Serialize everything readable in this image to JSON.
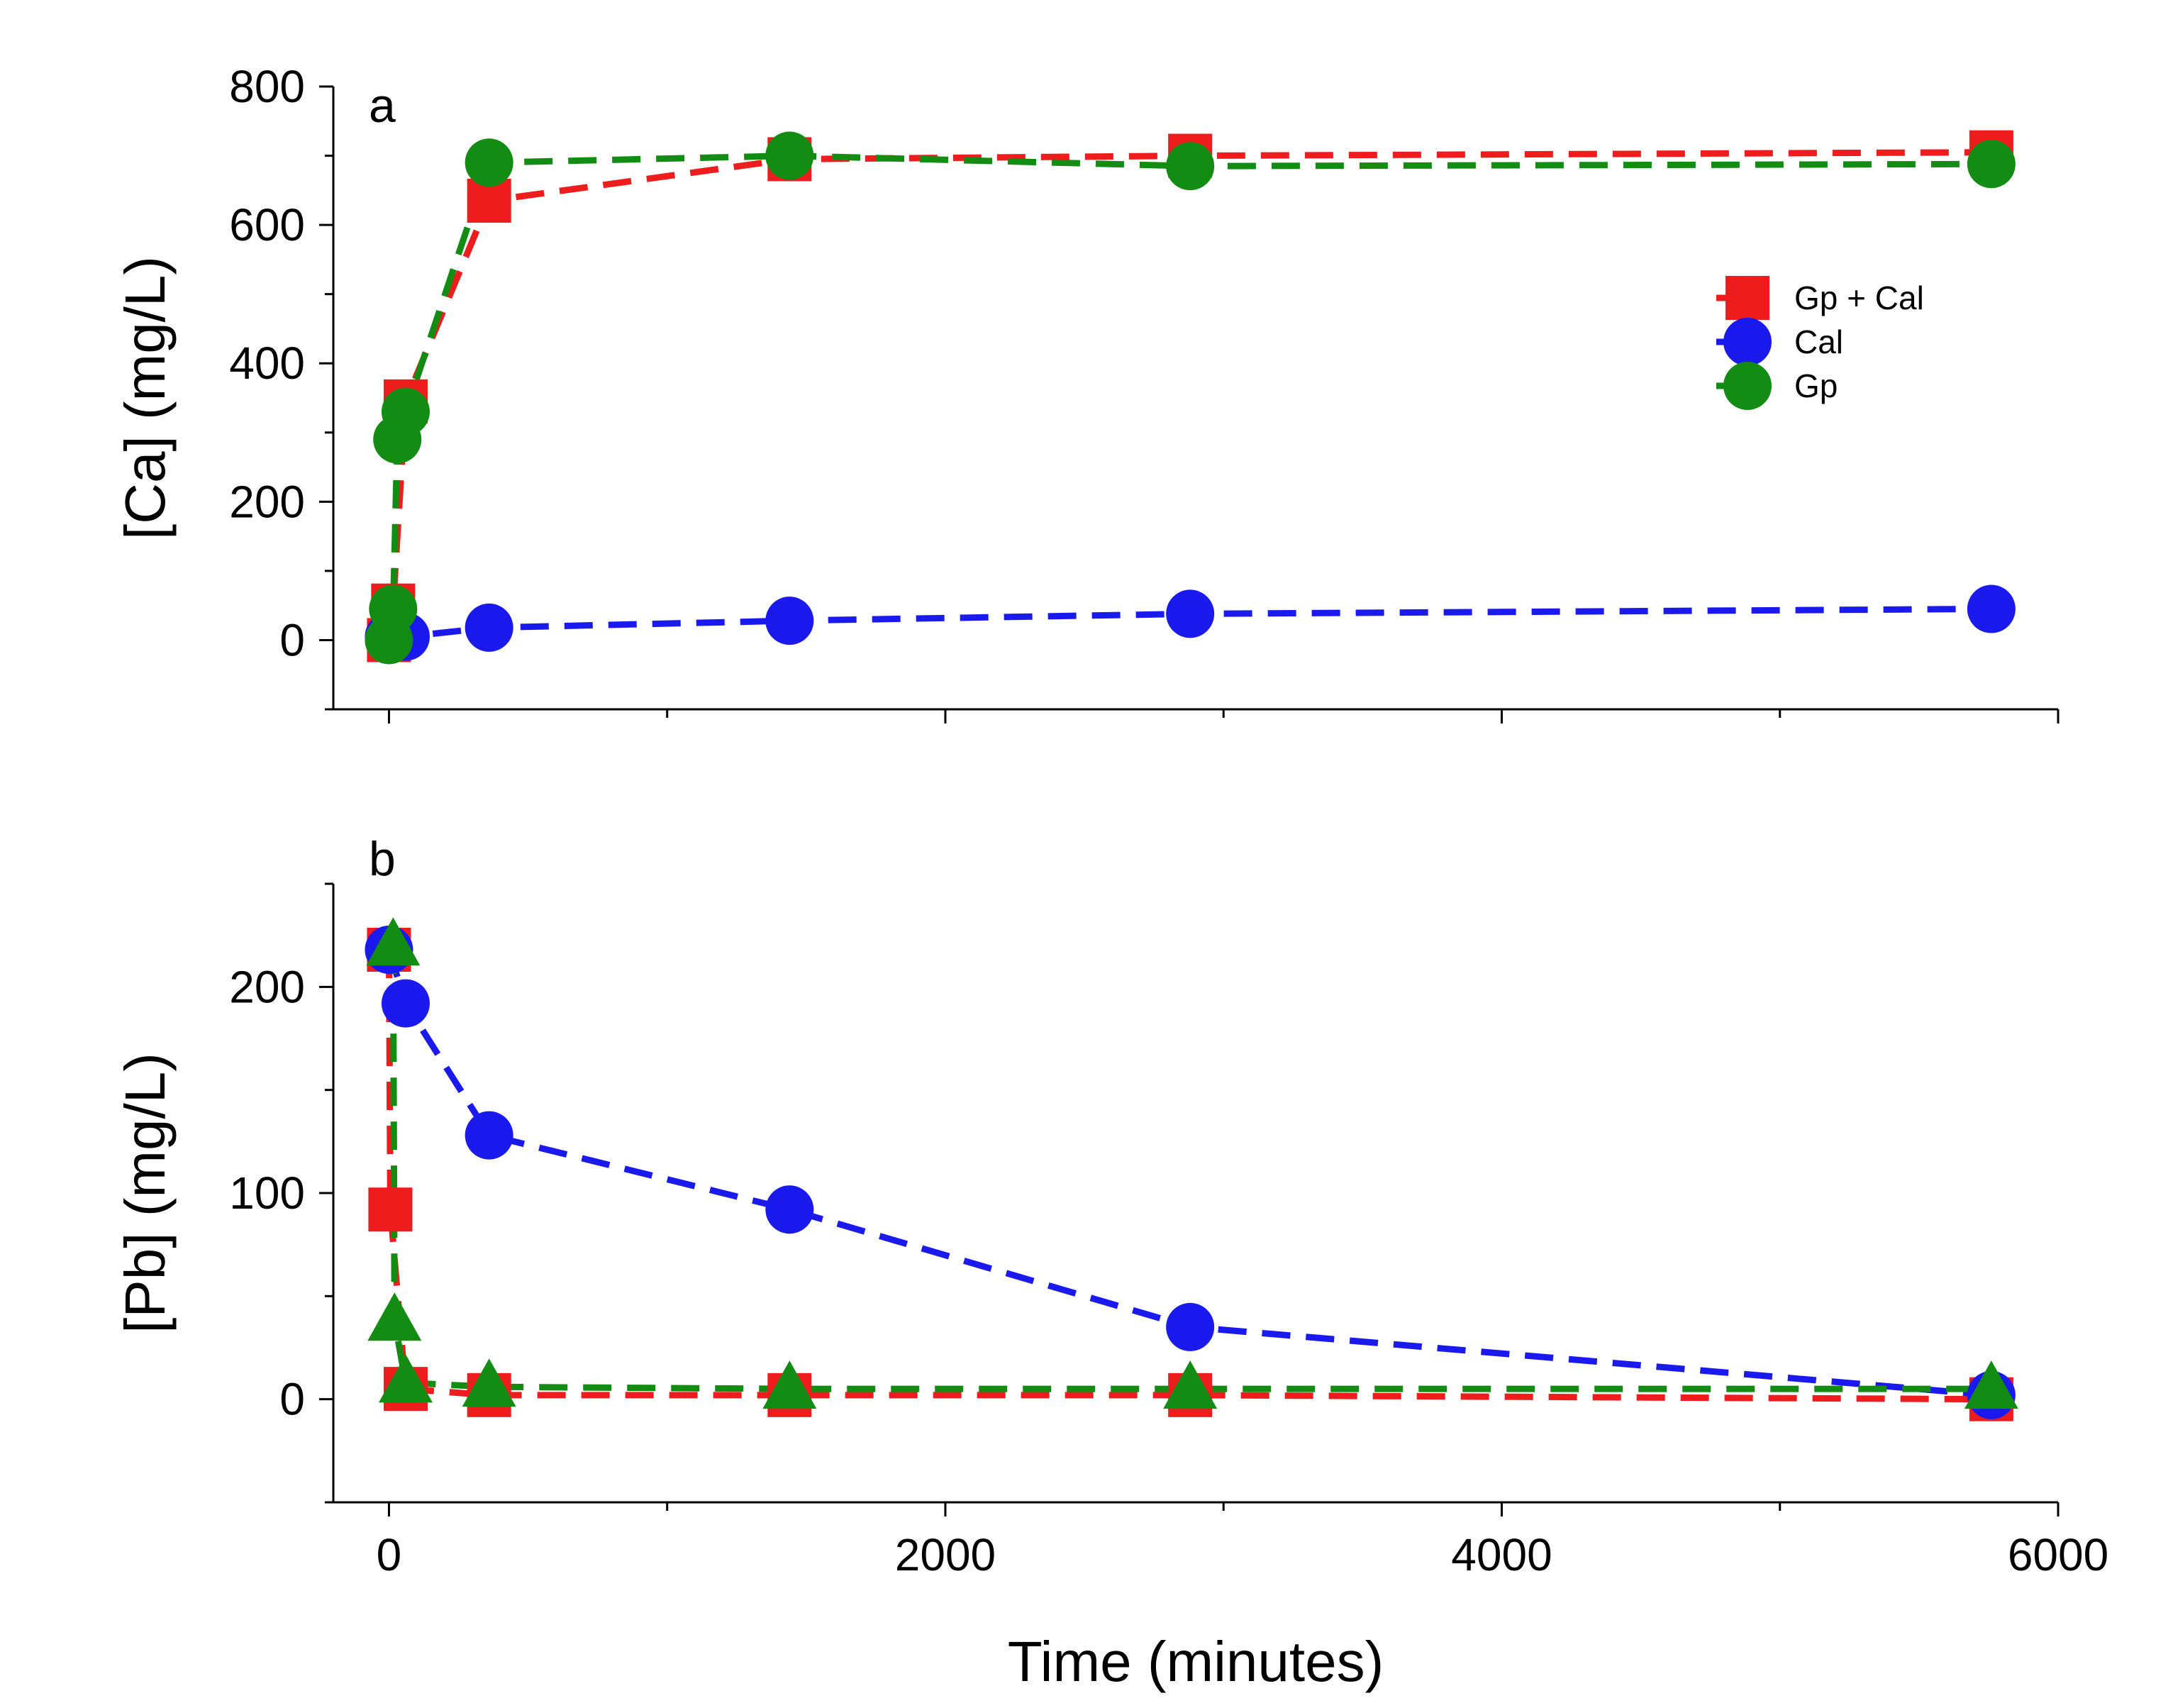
{
  "chart_data": [
    {
      "id": "a",
      "type": "line",
      "panel_label": "a",
      "ylabel": "[Ca] (mg/L)",
      "xlabel": "",
      "xlim": [
        -200,
        6000
      ],
      "ylim": [
        -100,
        800
      ],
      "xticks": [
        0,
        2000,
        4000,
        6000
      ],
      "xtick_labels_visible": false,
      "yticks": [
        0,
        200,
        400,
        600,
        800
      ],
      "ytick_labels": [
        "0",
        "200",
        "400",
        "600",
        "800"
      ],
      "legend": {
        "position": "top-right",
        "entries": [
          "Gp + Cal",
          "Cal",
          "Gp"
        ]
      },
      "series": [
        {
          "name": "Gp + Cal",
          "color": "#ee1c1c",
          "marker": "square",
          "x": [
            0,
            15,
            60,
            360,
            1440,
            2880,
            5760
          ],
          "y": [
            0,
            50,
            345,
            635,
            695,
            700,
            705
          ]
        },
        {
          "name": "Cal",
          "color": "#1a1aee",
          "marker": "circle",
          "x": [
            0,
            60,
            360,
            1440,
            2880,
            5760
          ],
          "y": [
            5,
            5,
            18,
            28,
            38,
            45
          ]
        },
        {
          "name": "Gp",
          "color": "#128c12",
          "marker": "circle",
          "x": [
            0,
            15,
            30,
            60,
            360,
            1440,
            2880,
            5760
          ],
          "y": [
            0,
            45,
            290,
            330,
            690,
            700,
            685,
            688
          ]
        }
      ]
    },
    {
      "id": "b",
      "type": "line",
      "panel_label": "b",
      "ylabel": "[Pb] (mg/L)",
      "xlabel": "Time (minutes)",
      "xlim": [
        -200,
        6000
      ],
      "ylim": [
        -50,
        250
      ],
      "xticks": [
        0,
        2000,
        4000,
        6000
      ],
      "xtick_labels": [
        "0",
        "2000",
        "4000",
        "6000"
      ],
      "yticks": [
        0,
        100,
        200
      ],
      "ytick_labels": [
        "0",
        "100",
        "200"
      ],
      "series": [
        {
          "name": "Gp + Cal",
          "color": "#ee1c1c",
          "marker": "square",
          "x": [
            0,
            5,
            60,
            360,
            1440,
            2880,
            5760
          ],
          "y": [
            218,
            92,
            5,
            2,
            2,
            2,
            0
          ]
        },
        {
          "name": "Cal",
          "color": "#1a1aee",
          "marker": "circle",
          "x": [
            0,
            60,
            360,
            1440,
            2880,
            5760
          ],
          "y": [
            218,
            192,
            128,
            92,
            35,
            2
          ]
        },
        {
          "name": "Gp",
          "color": "#128c12",
          "marker": "triangle",
          "x": [
            15,
            20,
            60,
            360,
            1440,
            2880,
            5760
          ],
          "y": [
            220,
            38,
            8,
            6,
            5,
            5,
            5
          ]
        }
      ]
    }
  ]
}
